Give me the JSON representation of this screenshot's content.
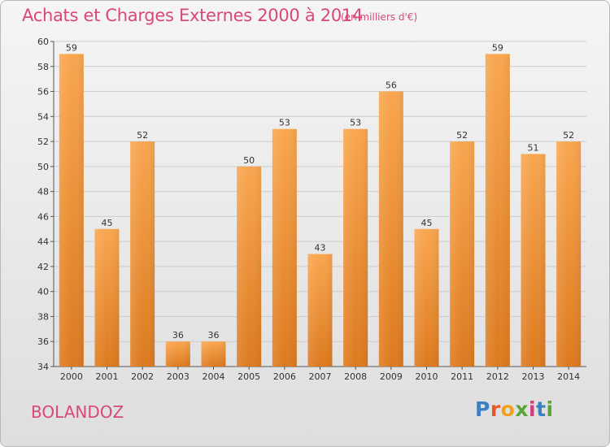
{
  "header": {
    "title": "Achats et Charges Externes 2000 à 2014",
    "subtitle": "(en milliers d'€)"
  },
  "footer": {
    "place": "BOLANDOZ",
    "logo_text": "Proxiti"
  },
  "colors": {
    "title": "#d9487a",
    "bar_light": "#f8a24d",
    "bar_dark": "#e07b22",
    "grid": "#cccccc"
  },
  "chart_data": {
    "type": "bar",
    "title": "Achats et Charges Externes 2000 à 2014",
    "subtitle": "(en milliers d'€)",
    "xlabel": "",
    "ylabel": "",
    "categories": [
      "2000",
      "2001",
      "2002",
      "2003",
      "2004",
      "2005",
      "2006",
      "2007",
      "2008",
      "2009",
      "2010",
      "2011",
      "2012",
      "2013",
      "2014"
    ],
    "values": [
      59,
      45,
      52,
      36,
      36,
      50,
      53,
      43,
      53,
      56,
      45,
      52,
      59,
      51,
      52
    ],
    "ylim": [
      34,
      60
    ],
    "yticks": [
      34,
      36,
      38,
      40,
      42,
      44,
      46,
      48,
      50,
      52,
      54,
      56,
      58,
      60
    ],
    "grid": true,
    "legend": "none"
  }
}
